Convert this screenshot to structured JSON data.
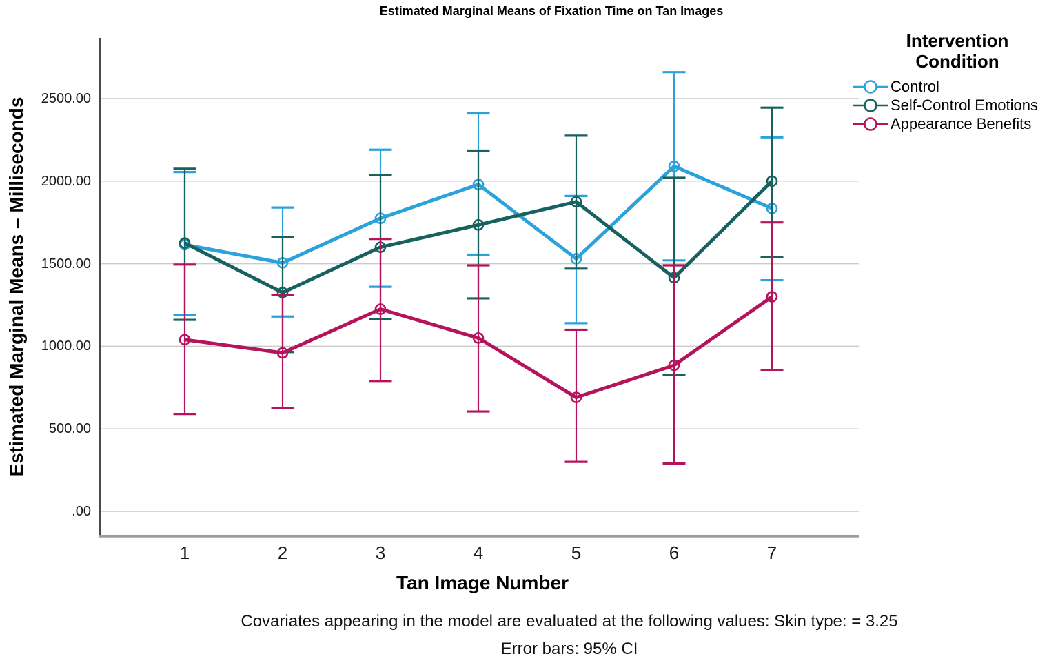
{
  "chart_data": {
    "type": "line",
    "title": "Estimated Marginal Means of Fixation Time on Tan Images",
    "xlabel": "Tan Image Number",
    "ylabel": "Estimated Marginal Means – Milliseconds",
    "legend_title": "Intervention Condition",
    "legend_position": "top-right",
    "grid": "horizontal",
    "error_bars": "95% CI",
    "x_categories": [
      "1",
      "2",
      "3",
      "4",
      "5",
      "6",
      "7"
    ],
    "y_ticks": [
      {
        "label": "2500.00",
        "value": 2500
      },
      {
        "label": "2000.00",
        "value": 2000
      },
      {
        "label": "1500.00",
        "value": 1500
      },
      {
        "label": "1000.00",
        "value": 1000
      },
      {
        "label": "500.00",
        "value": 500
      },
      {
        "label": ".00",
        "value": 0
      }
    ],
    "ylim": [
      -150,
      2870
    ],
    "series": [
      {
        "name": "Control",
        "color": "#2BA2DB",
        "means": [
          1615,
          1505,
          1775,
          1980,
          1530,
          2090,
          1835
        ],
        "ci_low": [
          1190,
          1180,
          1360,
          1555,
          1140,
          1520,
          1400
        ],
        "ci_high": [
          2055,
          1840,
          2190,
          2410,
          1910,
          2660,
          2265
        ]
      },
      {
        "name": "Self-Control Emotions",
        "color": "#17615E",
        "means": [
          1625,
          1325,
          1600,
          1735,
          1875,
          1415,
          2000
        ],
        "ci_low": [
          1160,
          965,
          1165,
          1290,
          1470,
          825,
          1540
        ],
        "ci_high": [
          2075,
          1660,
          2035,
          2185,
          2275,
          2020,
          2445
        ]
      },
      {
        "name": "Appearance Benefits",
        "color": "#B5145C",
        "means": [
          1040,
          960,
          1225,
          1050,
          690,
          885,
          1300
        ],
        "ci_low": [
          590,
          625,
          790,
          605,
          300,
          290,
          855
        ],
        "ci_high": [
          1495,
          1310,
          1650,
          1490,
          1100,
          1490,
          1750
        ]
      }
    ],
    "footnotes": [
      "Covariates appearing in the model are evaluated at the following values: Skin type: = 3.25",
      "Error bars: 95% CI"
    ]
  }
}
